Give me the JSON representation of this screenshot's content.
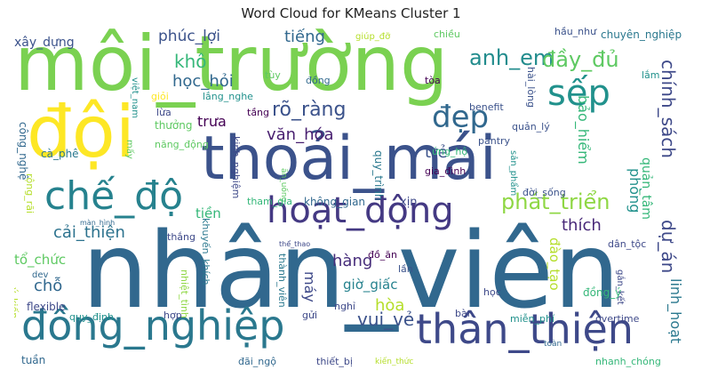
{
  "chart_data": {
    "type": "word_cloud",
    "title": "Word Cloud for KMeans Cluster 1",
    "palette": "viridis",
    "words": [
      {
        "text": "môi_trường",
        "weight": 0.95,
        "color": "#7ad151"
      },
      {
        "text": "nhân_viên",
        "weight": 1.0,
        "color": "#31688e"
      },
      {
        "text": "thoải_mái",
        "weight": 0.72,
        "color": "#3b528b"
      },
      {
        "text": "đội",
        "weight": 0.62,
        "color": "#fde725"
      },
      {
        "text": "chế_độ",
        "weight": 0.45,
        "color": "#26828e"
      },
      {
        "text": "đồng_nghiệp",
        "weight": 0.5,
        "color": "#2a788e"
      },
      {
        "text": "thân_thiện",
        "weight": 0.48,
        "color": "#3e4989"
      },
      {
        "text": "hoạt_động",
        "weight": 0.42,
        "color": "#443983"
      },
      {
        "text": "sếp",
        "weight": 0.38,
        "color": "#21918c"
      },
      {
        "text": "đẹp",
        "weight": 0.32,
        "color": "#31688e"
      },
      {
        "text": "dự_án",
        "weight": 0.25,
        "color": "#3e4989"
      },
      {
        "text": "chính_sách",
        "weight": 0.24,
        "color": "#3e4989"
      },
      {
        "text": "phát_triển",
        "weight": 0.27,
        "color": "#8fd744"
      },
      {
        "text": "anh_em",
        "weight": 0.25,
        "color": "#228c8d"
      },
      {
        "text": "đầy_đủ",
        "weight": 0.25,
        "color": "#5ec962"
      },
      {
        "text": "rõ_ràng",
        "weight": 0.22,
        "color": "#3b528b"
      },
      {
        "text": "văn_hóa",
        "weight": 0.19,
        "color": "#481f70"
      },
      {
        "text": "vui_vẻ",
        "weight": 0.2,
        "color": "#3b528b"
      },
      {
        "text": "cải_thiện",
        "weight": 0.19,
        "color": "#2c728e"
      },
      {
        "text": "tiếng",
        "weight": 0.18,
        "color": "#31688e"
      },
      {
        "text": "khô",
        "weight": 0.19,
        "color": "#35b779"
      },
      {
        "text": "học_hỏi",
        "weight": 0.18,
        "color": "#31688e"
      },
      {
        "text": "phúc_lợi",
        "weight": 0.17,
        "color": "#3b528b"
      },
      {
        "text": "bảo_hiểm",
        "weight": 0.15,
        "color": "#35b779"
      },
      {
        "text": "linh_hoạt",
        "weight": 0.15,
        "color": "#2a788e"
      },
      {
        "text": "phòng",
        "weight": 0.16,
        "color": "#21918c"
      },
      {
        "text": "quản_tâm",
        "weight": 0.14,
        "color": "#35b779"
      },
      {
        "text": "thích",
        "weight": 0.16,
        "color": "#482878"
      },
      {
        "text": "trưa",
        "weight": 0.15,
        "color": "#440154"
      },
      {
        "text": "trẻ",
        "weight": 0.16,
        "color": "#3b528b"
      },
      {
        "text": "hàng",
        "weight": 0.15,
        "color": "#472d7b"
      },
      {
        "text": "máy",
        "weight": 0.14,
        "color": "#3e4989"
      },
      {
        "text": "tổ_chức",
        "weight": 0.14,
        "color": "#5ec962"
      },
      {
        "text": "chỗ",
        "weight": 0.14,
        "color": "#31688e"
      },
      {
        "text": "đào_tạo",
        "weight": 0.14,
        "color": "#b5de2b"
      },
      {
        "text": "giờ_giấc",
        "weight": 0.13,
        "color": "#26828e"
      },
      {
        "text": "hòa",
        "weight": 0.14,
        "color": "#b5de2b"
      },
      {
        "text": "tiền",
        "weight": 0.12,
        "color": "#35b779"
      },
      {
        "text": "xây_dựng",
        "weight": 0.11,
        "color": "#3b528b"
      },
      {
        "text": "chuyên_nghiệp",
        "weight": 0.09,
        "color": "#2a788e"
      },
      {
        "text": "giúp_đỡ",
        "weight": 0.08,
        "color": "#b5de2b"
      },
      {
        "text": "chiều",
        "weight": 0.08,
        "color": "#5ec962"
      },
      {
        "text": "hầu_như",
        "weight": 0.08,
        "color": "#3b528b"
      },
      {
        "text": "hài_lòng",
        "weight": 0.08,
        "color": "#3b528b"
      },
      {
        "text": "lắm",
        "weight": 0.08,
        "color": "#21918c"
      },
      {
        "text": "việt_nam",
        "weight": 0.08,
        "color": "#21918c"
      },
      {
        "text": "lắng_nghe",
        "weight": 0.08,
        "color": "#21918c"
      },
      {
        "text": "tùy",
        "weight": 0.08,
        "color": "#5ec962"
      },
      {
        "text": "đồng",
        "weight": 0.08,
        "color": "#31688e"
      },
      {
        "text": "tòa",
        "weight": 0.08,
        "color": "#440154"
      },
      {
        "text": "quản_lý",
        "weight": 0.08,
        "color": "#3b528b"
      },
      {
        "text": "benefit",
        "weight": 0.08,
        "color": "#3b528b"
      },
      {
        "text": "tầng",
        "weight": 0.08,
        "color": "#440154"
      },
      {
        "text": "giỏi",
        "weight": 0.08,
        "color": "#fde725"
      },
      {
        "text": "mấy",
        "weight": 0.08,
        "color": "#5ec962"
      },
      {
        "text": "lừa",
        "weight": 0.08,
        "color": "#3e4989"
      },
      {
        "text": "thưởng",
        "weight": 0.1,
        "color": "#5ec962"
      },
      {
        "text": "cà_phê",
        "weight": 0.08,
        "color": "#2a788e"
      },
      {
        "text": "rộng_rãi",
        "weight": 0.07,
        "color": "#b5de2b"
      },
      {
        "text": "công_nghệ",
        "weight": 0.08,
        "color": "#31688e"
      },
      {
        "text": "năng_động",
        "weight": 0.08,
        "color": "#5ec962"
      },
      {
        "text": "kinh_nghiệm",
        "weight": 0.08,
        "color": "#3e4989"
      },
      {
        "text": "quy_trình",
        "weight": 0.1,
        "color": "#2a788e"
      },
      {
        "text": "ăn_uống",
        "weight": 0.07,
        "color": "#5ec962"
      },
      {
        "text": "ứng_hộ",
        "weight": 0.08,
        "color": "#35b779"
      },
      {
        "text": "sản_phẩm",
        "weight": 0.07,
        "color": "#21918c"
      },
      {
        "text": "pantry",
        "weight": 0.08,
        "color": "#3b528b"
      },
      {
        "text": "đời_sống",
        "weight": 0.08,
        "color": "#3b528b"
      },
      {
        "text": "gia_đình",
        "weight": 0.08,
        "color": "#440154"
      },
      {
        "text": "tham_gia",
        "weight": 0.08,
        "color": "#35b779"
      },
      {
        "text": "không_gian",
        "weight": 0.09,
        "color": "#31688e"
      },
      {
        "text": "xịn",
        "weight": 0.09,
        "color": "#3e4989"
      },
      {
        "text": "màn_hình",
        "weight": 0.06,
        "color": "#31688e"
      },
      {
        "text": "thắng",
        "weight": 0.08,
        "color": "#3e4989"
      },
      {
        "text": "khuyến_khích",
        "weight": 0.08,
        "color": "#2a788e"
      },
      {
        "text": "thể_thao",
        "weight": 0.06,
        "color": "#3e4989"
      },
      {
        "text": "dân_tộc",
        "weight": 0.08,
        "color": "#3e4989"
      },
      {
        "text": "đồ_ăn",
        "weight": 0.08,
        "color": "#440154"
      },
      {
        "text": "thành_viên",
        "weight": 0.08,
        "color": "#2a788e"
      },
      {
        "text": "lần",
        "weight": 0.08,
        "color": "#3b528b"
      },
      {
        "text": "dev",
        "weight": 0.07,
        "color": "#31688e"
      },
      {
        "text": "nhiệt_tình",
        "weight": 0.08,
        "color": "#8fd744"
      },
      {
        "text": "gắn_kết",
        "weight": 0.07,
        "color": "#3e4989"
      },
      {
        "text": "ý_kiến",
        "weight": 0.07,
        "color": "#b5de2b"
      },
      {
        "text": "flexible",
        "weight": 0.08,
        "color": "#3e4989"
      },
      {
        "text": "đồng_ý",
        "weight": 0.08,
        "color": "#35b779"
      },
      {
        "text": "học",
        "weight": 0.08,
        "color": "#3e4989"
      },
      {
        "text": "quy_định",
        "weight": 0.07,
        "color": "#21918c"
      },
      {
        "text": "hợp",
        "weight": 0.08,
        "color": "#3e4989"
      },
      {
        "text": "gửi",
        "weight": 0.07,
        "color": "#3e4989"
      },
      {
        "text": "nghỉ",
        "weight": 0.08,
        "color": "#3e4989"
      },
      {
        "text": "bàn",
        "weight": 0.08,
        "color": "#3e4989"
      },
      {
        "text": "miễn_phí",
        "weight": 0.08,
        "color": "#21918c"
      },
      {
        "text": "overtime",
        "weight": 0.08,
        "color": "#3e4989"
      },
      {
        "text": "tuần",
        "weight": 0.08,
        "color": "#31688e"
      },
      {
        "text": "đãi_ngộ",
        "weight": 0.08,
        "color": "#31688e"
      },
      {
        "text": "thiết_bị",
        "weight": 0.08,
        "color": "#3e4989"
      },
      {
        "text": "kiến_thức",
        "weight": 0.06,
        "color": "#b5de2b"
      },
      {
        "text": "toàn",
        "weight": 0.06,
        "color": "#31688e"
      },
      {
        "text": "nhanh_chóng",
        "weight": 0.07,
        "color": "#35b779"
      }
    ]
  }
}
